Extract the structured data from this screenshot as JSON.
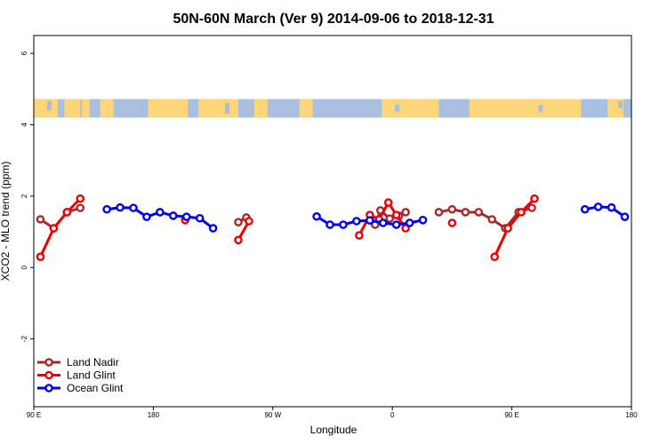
{
  "chart_data": {
    "type": "line",
    "title": "50N-60N March (Ver 9)   2014-09-06 to 2018-12-31",
    "xlabel": "Longitude",
    "ylabel": "XCO2 - MLO trend (ppm)",
    "xlim": [
      90,
      540
    ],
    "ylim": [
      -3.9,
      6.5
    ],
    "x_ticks": [
      {
        "value": 90,
        "label": "90 E"
      },
      {
        "value": 180,
        "label": "180"
      },
      {
        "value": 270,
        "label": "90 W"
      },
      {
        "value": 360,
        "label": "0"
      },
      {
        "value": 450,
        "label": "90 E"
      },
      {
        "value": 540,
        "label": "180"
      }
    ],
    "y_ticks": [
      {
        "value": -2,
        "label": "-2"
      },
      {
        "value": 0,
        "label": "0"
      },
      {
        "value": 2,
        "label": "2"
      },
      {
        "value": 4,
        "label": "4"
      },
      {
        "value": 6,
        "label": "6"
      }
    ],
    "map_band": {
      "ymin": 4.2,
      "ymax": 4.72,
      "ocean_color": "#a9bfe0",
      "land_color": "#fdd67a"
    },
    "legend_position": "bottom-left",
    "series": [
      {
        "name": "Land Nadir",
        "color": "#a52a2a",
        "segments": [
          [
            [
              95,
              1.35
            ],
            [
              105,
              1.1
            ],
            [
              115,
              1.55
            ],
            [
              125,
              1.67
            ]
          ],
          [
            [
              244,
              1.27
            ],
            [
              250,
              1.4
            ]
          ],
          [
            [
              347,
              1.2
            ],
            [
              351,
              1.6
            ],
            [
              358,
              1.37
            ],
            [
              365,
              1.45
            ],
            [
              370,
              1.55
            ]
          ],
          [
            [
              395,
              1.55
            ],
            [
              405,
              1.63
            ],
            [
              415,
              1.55
            ],
            [
              425,
              1.55
            ],
            [
              435,
              1.35
            ],
            [
              445,
              1.1
            ],
            [
              455,
              1.55
            ],
            [
              465,
              1.67
            ]
          ]
        ]
      },
      {
        "name": "Land Glint",
        "color": "#ee0000",
        "segments": [
          [
            [
              95,
              0.3
            ],
            [
              105,
              1.1
            ],
            [
              115,
              1.55
            ],
            [
              125,
              1.93
            ]
          ],
          [
            [
              204,
              1.33
            ]
          ],
          [
            [
              244,
              0.77
            ],
            [
              252,
              1.3
            ]
          ],
          [
            [
              335,
              0.9
            ],
            [
              343,
              1.47
            ],
            [
              350,
              1.35
            ],
            [
              357,
              1.82
            ],
            [
              363,
              1.47
            ],
            [
              370,
              1.1
            ]
          ],
          [
            [
              405,
              1.25
            ]
          ],
          [
            [
              437,
              0.3
            ],
            [
              447,
              1.1
            ],
            [
              457,
              1.55
            ],
            [
              467,
              1.93
            ]
          ]
        ]
      },
      {
        "name": "Ocean Glint",
        "color": "#0000ee",
        "segments": [
          [
            [
              145,
              1.63
            ],
            [
              155,
              1.68
            ],
            [
              165,
              1.67
            ],
            [
              175,
              1.42
            ],
            [
              185,
              1.55
            ],
            [
              195,
              1.45
            ],
            [
              205,
              1.42
            ],
            [
              215,
              1.38
            ],
            [
              225,
              1.1
            ]
          ],
          [
            [
              303,
              1.43
            ],
            [
              313,
              1.2
            ],
            [
              323,
              1.2
            ],
            [
              333,
              1.3
            ],
            [
              343,
              1.32
            ],
            [
              353,
              1.25
            ],
            [
              363,
              1.2
            ],
            [
              373,
              1.25
            ],
            [
              383,
              1.33
            ]
          ],
          [
            [
              505,
              1.63
            ],
            [
              515,
              1.7
            ],
            [
              525,
              1.68
            ],
            [
              535,
              1.42
            ]
          ]
        ]
      }
    ]
  }
}
